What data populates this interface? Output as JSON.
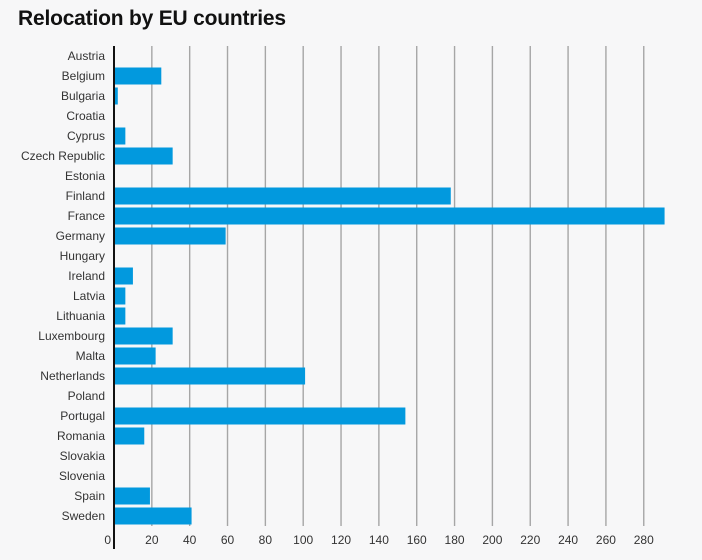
{
  "chart_data": {
    "type": "bar",
    "orientation": "horizontal",
    "title": "Relocation by EU countries",
    "xlabel": "",
    "ylabel": "",
    "categories": [
      "Austria",
      "Belgium",
      "Bulgaria",
      "Croatia",
      "Cyprus",
      "Czech Republic",
      "Estonia",
      "Finland",
      "France",
      "Germany",
      "Hungary",
      "Ireland",
      "Latvia",
      "Lithuania",
      "Luxembourg",
      "Malta",
      "Netherlands",
      "Poland",
      "Portugal",
      "Romania",
      "Slovakia",
      "Slovenia",
      "Spain",
      "Sweden"
    ],
    "values": [
      0,
      25,
      2,
      0,
      6,
      31,
      0,
      178,
      291,
      59,
      0,
      10,
      6,
      6,
      31,
      22,
      101,
      0,
      154,
      16,
      0,
      0,
      19,
      41
    ],
    "xlim": [
      0,
      290
    ],
    "ticks": [
      "0",
      "20",
      "40",
      "60",
      "80",
      "100",
      "120",
      "140",
      "160",
      "180",
      "200",
      "220",
      "240",
      "260",
      "280"
    ],
    "grid": true,
    "bar_color": "#0299de",
    "grid_color": "#a6a6a6",
    "axis_color": "#111111"
  }
}
